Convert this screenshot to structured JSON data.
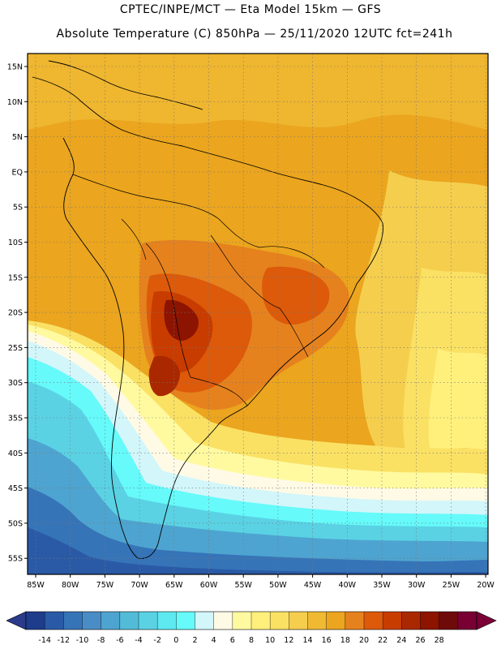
{
  "header": {
    "title": "CPTEC/INPE/MCT —   Eta Model 15km — GFS",
    "subtitle": "Absolute Temperature (C) 850hPa — 25/11/2020 12UTC fct=241h"
  },
  "map": {
    "lat_labels": [
      "15N",
      "10N",
      "5N",
      "EQ",
      "5S",
      "10S",
      "15S",
      "20S",
      "25S",
      "30S",
      "35S",
      "40S",
      "45S",
      "50S",
      "55S"
    ],
    "lon_labels": [
      "85W",
      "80W",
      "75W",
      "70W",
      "65W",
      "60W",
      "55W",
      "50W",
      "45W",
      "40W",
      "35W",
      "30W",
      "25W",
      "20W"
    ]
  },
  "legend": {
    "labels": [
      "-14",
      "-12",
      "-10",
      "-8",
      "-6",
      "-4",
      "-2",
      "0",
      "2",
      "4",
      "6",
      "8",
      "10",
      "12",
      "14",
      "16",
      "18",
      "20",
      "22",
      "24",
      "26",
      "28"
    ],
    "colors": [
      "#1e3c8c",
      "#2a5aa6",
      "#3674b8",
      "#4a8cc6",
      "#4ea4d0",
      "#52bcd8",
      "#5ad2e4",
      "#5ee8f0",
      "#66fafa",
      "#d2f6fa",
      "#fffae6",
      "#fffaa0",
      "#fff07c",
      "#fae164",
      "#f5ce4e",
      "#f0b932",
      "#eba51e",
      "#e6821e",
      "#dc5a0a",
      "#c83c00",
      "#aa2800",
      "#8c1400",
      "#6e0a0a",
      "#780032"
    ],
    "arrow_left_color": "#2b3a8a",
    "arrow_right_color": "#7a0036"
  },
  "colors": {
    "sea_cold": "#3e8ec6",
    "land_warm": "#eba51e"
  }
}
